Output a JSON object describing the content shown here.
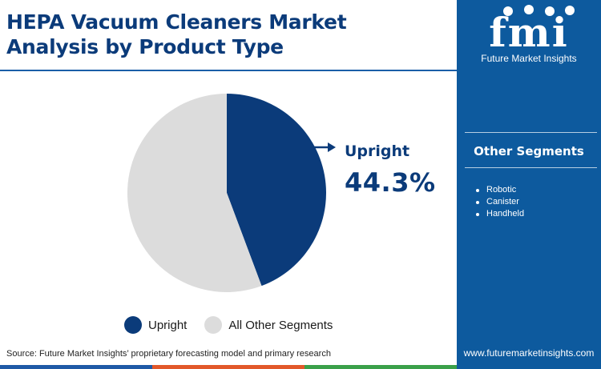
{
  "title_line1": "HEPA Vacuum Cleaners Market",
  "title_line2": "Analysis by Product Type",
  "colors": {
    "primary": "#0b3b7a",
    "other": "#dcdcdc",
    "panel": "#0d5a9e",
    "bar": [
      "#1f5aa6",
      "#e2582a",
      "#3aa04a",
      "#0b3b7a"
    ]
  },
  "chart_data": {
    "type": "pie",
    "slices": [
      {
        "label": "Upright",
        "value": 44.3,
        "color": "#0b3b7a"
      },
      {
        "label": "All Other Segments",
        "value": 55.7,
        "color": "#dcdcdc"
      }
    ]
  },
  "callout": {
    "label": "Upright",
    "value": "44.3%"
  },
  "legend": [
    {
      "label": "Upright",
      "color": "#0b3b7a"
    },
    {
      "label": "All Other Segments",
      "color": "#dcdcdc"
    }
  ],
  "source": "Source: Future Market Insights’ proprietary forecasting model and primary research",
  "side_panel": {
    "logo_letters": "fmi",
    "logo_name": "Future Market Insights",
    "heading": "Other Segments",
    "items": [
      "Robotic",
      "Canister",
      "Handheld"
    ],
    "url": "www.futuremarketinsights.com"
  }
}
